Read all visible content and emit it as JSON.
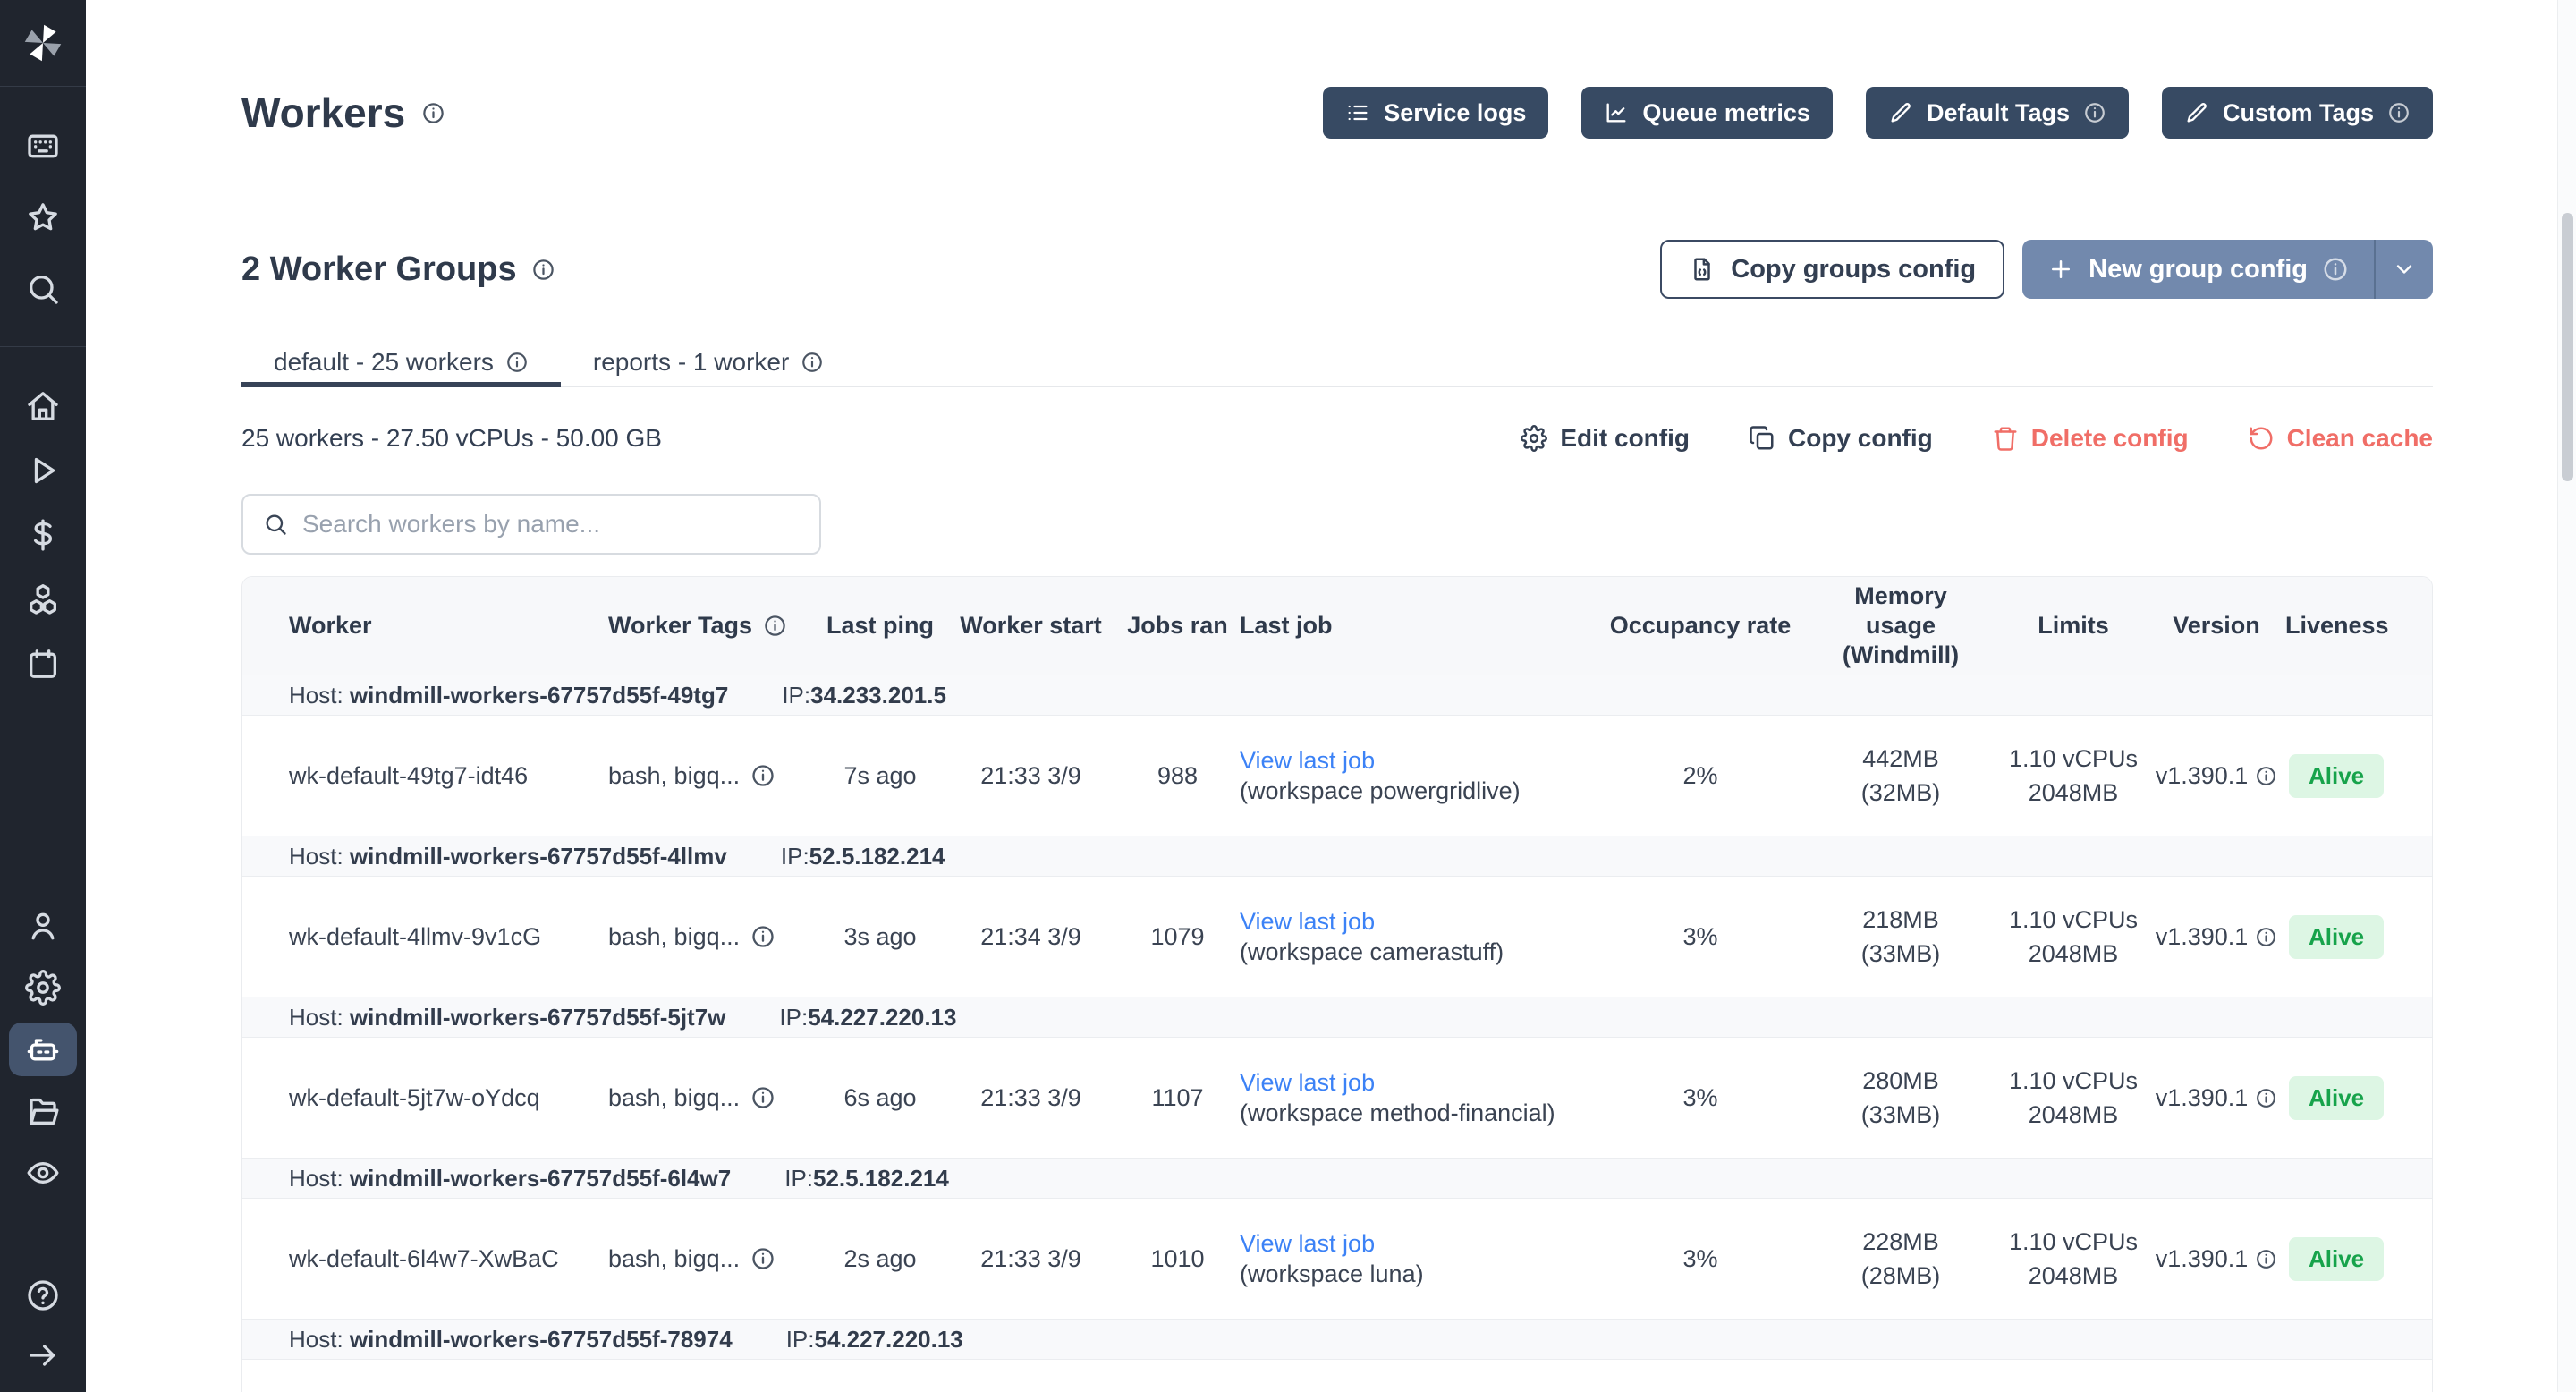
{
  "colors": {
    "sidebar_bg": "#20252e",
    "sidebar_active": "#44546d",
    "dark_button": "#374a63",
    "primary_button": "#7289ad",
    "danger": "#f06e67",
    "link": "#3c82f6",
    "alive_bg": "#ddf6e4",
    "alive_text": "#17a34b"
  },
  "sidebar": {
    "logo_icon": "windmill-logo",
    "groups": [
      {
        "items": [
          {
            "icon": "apps"
          },
          {
            "icon": "star"
          },
          {
            "icon": "search"
          }
        ]
      },
      {
        "items": [
          {
            "icon": "home"
          },
          {
            "icon": "play"
          },
          {
            "icon": "dollar"
          },
          {
            "icon": "cubes"
          },
          {
            "icon": "calendar"
          }
        ]
      },
      {
        "items": [
          {
            "icon": "user"
          },
          {
            "icon": "gear"
          },
          {
            "icon": "robot",
            "active": true
          },
          {
            "icon": "folder"
          },
          {
            "icon": "eye"
          }
        ]
      },
      {
        "items": [
          {
            "icon": "help"
          },
          {
            "icon": "arrow-right"
          }
        ]
      }
    ]
  },
  "header": {
    "title": "Workers",
    "buttons": [
      {
        "label": "Service logs",
        "icon": "logs",
        "info": false
      },
      {
        "label": "Queue metrics",
        "icon": "chart",
        "info": false
      },
      {
        "label": "Default Tags",
        "icon": "pen",
        "info": true
      },
      {
        "label": "Custom Tags",
        "icon": "pen",
        "info": true
      }
    ]
  },
  "groups": {
    "heading": "2 Worker Groups",
    "copy_label": "Copy groups config",
    "new_label": "New group config"
  },
  "tabs": [
    {
      "id": "default",
      "label": "default - 25 workers",
      "active": true
    },
    {
      "id": "reports",
      "label": "reports - 1 worker",
      "active": false
    }
  ],
  "summary": {
    "text": "25 workers - 27.50 vCPUs - 50.00 GB",
    "actions": [
      {
        "label": "Edit config",
        "icon": "gear",
        "danger": false
      },
      {
        "label": "Copy config",
        "icon": "copy",
        "danger": false
      },
      {
        "label": "Delete config",
        "icon": "trash",
        "danger": true
      },
      {
        "label": "Clean cache",
        "icon": "refresh",
        "danger": true
      }
    ]
  },
  "search": {
    "placeholder": "Search workers by name..."
  },
  "table": {
    "host_label": "Host:",
    "ip_label": "IP:",
    "columns": [
      "Worker",
      "Worker Tags",
      "Last ping",
      "Worker start",
      "Jobs ran",
      "Last job",
      "Occupancy rate",
      "Memory usage (Windmill)",
      "Limits",
      "Version",
      "Liveness"
    ],
    "hosts": [
      {
        "host": "windmill-workers-67757d55f-49tg7",
        "ip": "34.233.201.5",
        "workers": [
          {
            "name": "wk-default-49tg7-idt46",
            "tags": "bash, bigq...",
            "last_ping": "7s ago",
            "worker_start": "21:33 3/9",
            "jobs_ran": "988",
            "last_job": {
              "link": "View last job",
              "workspace": "(workspace powergridlive)"
            },
            "occupancy": "2%",
            "memory": {
              "total": "442MB",
              "windmill": "(32MB)"
            },
            "limits": {
              "cpu": "1.10 vCPUs",
              "memory": "2048MB"
            },
            "version": "v1.390.1",
            "liveness": "Alive"
          }
        ]
      },
      {
        "host": "windmill-workers-67757d55f-4llmv",
        "ip": "52.5.182.214",
        "workers": [
          {
            "name": "wk-default-4llmv-9v1cG",
            "tags": "bash, bigq...",
            "last_ping": "3s ago",
            "worker_start": "21:34 3/9",
            "jobs_ran": "1079",
            "last_job": {
              "link": "View last job",
              "workspace": "(workspace camerastuff)"
            },
            "occupancy": "3%",
            "memory": {
              "total": "218MB",
              "windmill": "(33MB)"
            },
            "limits": {
              "cpu": "1.10 vCPUs",
              "memory": "2048MB"
            },
            "version": "v1.390.1",
            "liveness": "Alive"
          }
        ]
      },
      {
        "host": "windmill-workers-67757d55f-5jt7w",
        "ip": "54.227.220.13",
        "workers": [
          {
            "name": "wk-default-5jt7w-oYdcq",
            "tags": "bash, bigq...",
            "last_ping": "6s ago",
            "worker_start": "21:33 3/9",
            "jobs_ran": "1107",
            "last_job": {
              "link": "View last job",
              "workspace": "(workspace method-financial)"
            },
            "occupancy": "3%",
            "memory": {
              "total": "280MB",
              "windmill": "(33MB)"
            },
            "limits": {
              "cpu": "1.10 vCPUs",
              "memory": "2048MB"
            },
            "version": "v1.390.1",
            "liveness": "Alive"
          }
        ]
      },
      {
        "host": "windmill-workers-67757d55f-6l4w7",
        "ip": "52.5.182.214",
        "workers": [
          {
            "name": "wk-default-6l4w7-XwBaC",
            "tags": "bash, bigq...",
            "last_ping": "2s ago",
            "worker_start": "21:33 3/9",
            "jobs_ran": "1010",
            "last_job": {
              "link": "View last job",
              "workspace": "(workspace luna)"
            },
            "occupancy": "3%",
            "memory": {
              "total": "228MB",
              "windmill": "(28MB)"
            },
            "limits": {
              "cpu": "1.10 vCPUs",
              "memory": "2048MB"
            },
            "version": "v1.390.1",
            "liveness": "Alive"
          }
        ]
      },
      {
        "host": "windmill-workers-67757d55f-78974",
        "ip": "54.227.220.13",
        "workers": []
      }
    ]
  }
}
